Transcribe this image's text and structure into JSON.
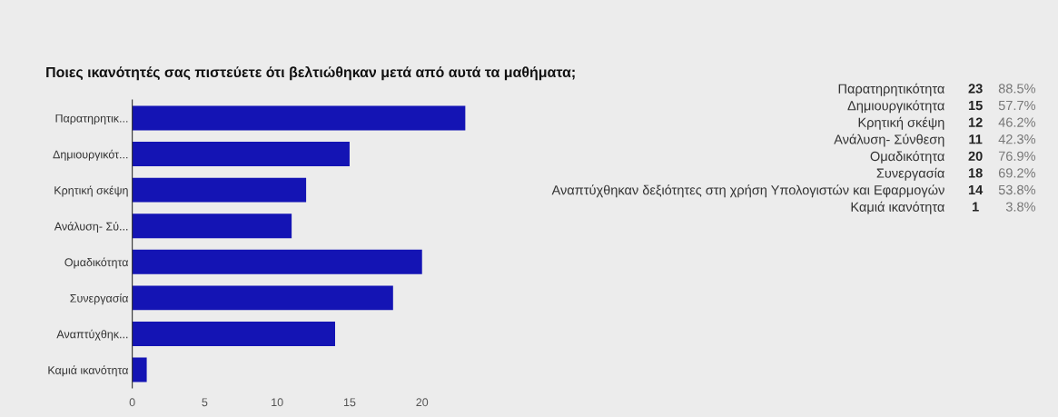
{
  "chart_data": {
    "type": "bar",
    "orientation": "horizontal",
    "title": "Ποιες ικανότητές σας πιστεύετε ότι βελτιώθηκαν μετά από αυτά τα μαθήματα;",
    "categories": [
      "Παρατηρητικ...",
      "Δημιουργικότ...",
      "Κρητική σκέψη",
      "Ανάλυση- Σύ...",
      "Ομαδικότητα",
      "Συνεργασία",
      "Αναπτύχθηκ...",
      "Καμιά ικανότητα"
    ],
    "values": [
      23,
      15,
      12,
      11,
      20,
      18,
      14,
      1
    ],
    "color": "#1414b4",
    "xlim": [
      0,
      23
    ],
    "xticks": [
      0,
      5,
      10,
      15,
      20
    ],
    "grid": false,
    "annotations": [
      "Παρατηρητικότητα 23 88.5%",
      "Δημιουργικότητα 15 57.7%",
      "Κρητική σκέψη 12 46.2%",
      "Ανάλυση- Σύνθεση 11 42.3%",
      "Ομαδικότητα 20 76.9%",
      "Συνεργασία 18 69.2%",
      "Αναπτύχθηκαν δεξιότητες στη χρήση Υπολογιστών και Εφαρμογών 14 53.8%",
      "Καμιά ικανότητα 1 3.8%"
    ]
  }
}
